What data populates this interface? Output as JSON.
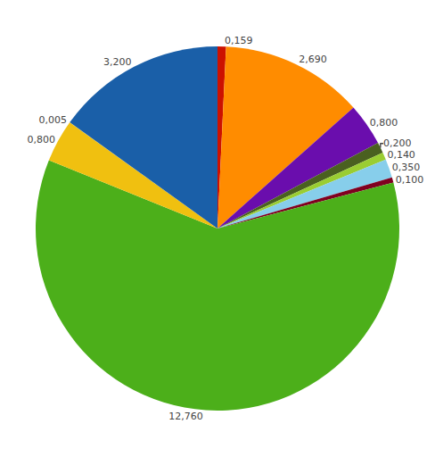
{
  "chart_data": {
    "type": "pie",
    "values": [
      0.159,
      2.69,
      0.8,
      0.2,
      0.14,
      0.35,
      0.1,
      12.76,
      0.8,
      0.005,
      3.2
    ],
    "value_labels": [
      "0,159",
      "2,690",
      "0,800",
      "0,200",
      "0,140",
      "0,350",
      "0,100",
      "12,760",
      "0,800",
      "0,005",
      "3,200"
    ],
    "colors": [
      "#cc1100",
      "#ff8c00",
      "#6a0dad",
      "#4a6020",
      "#9acd32",
      "#87ceeb",
      "#800020",
      "#4caf1a",
      "#f0c010",
      "#f0c010",
      "#1a5fa8"
    ],
    "data_labels": true
  }
}
